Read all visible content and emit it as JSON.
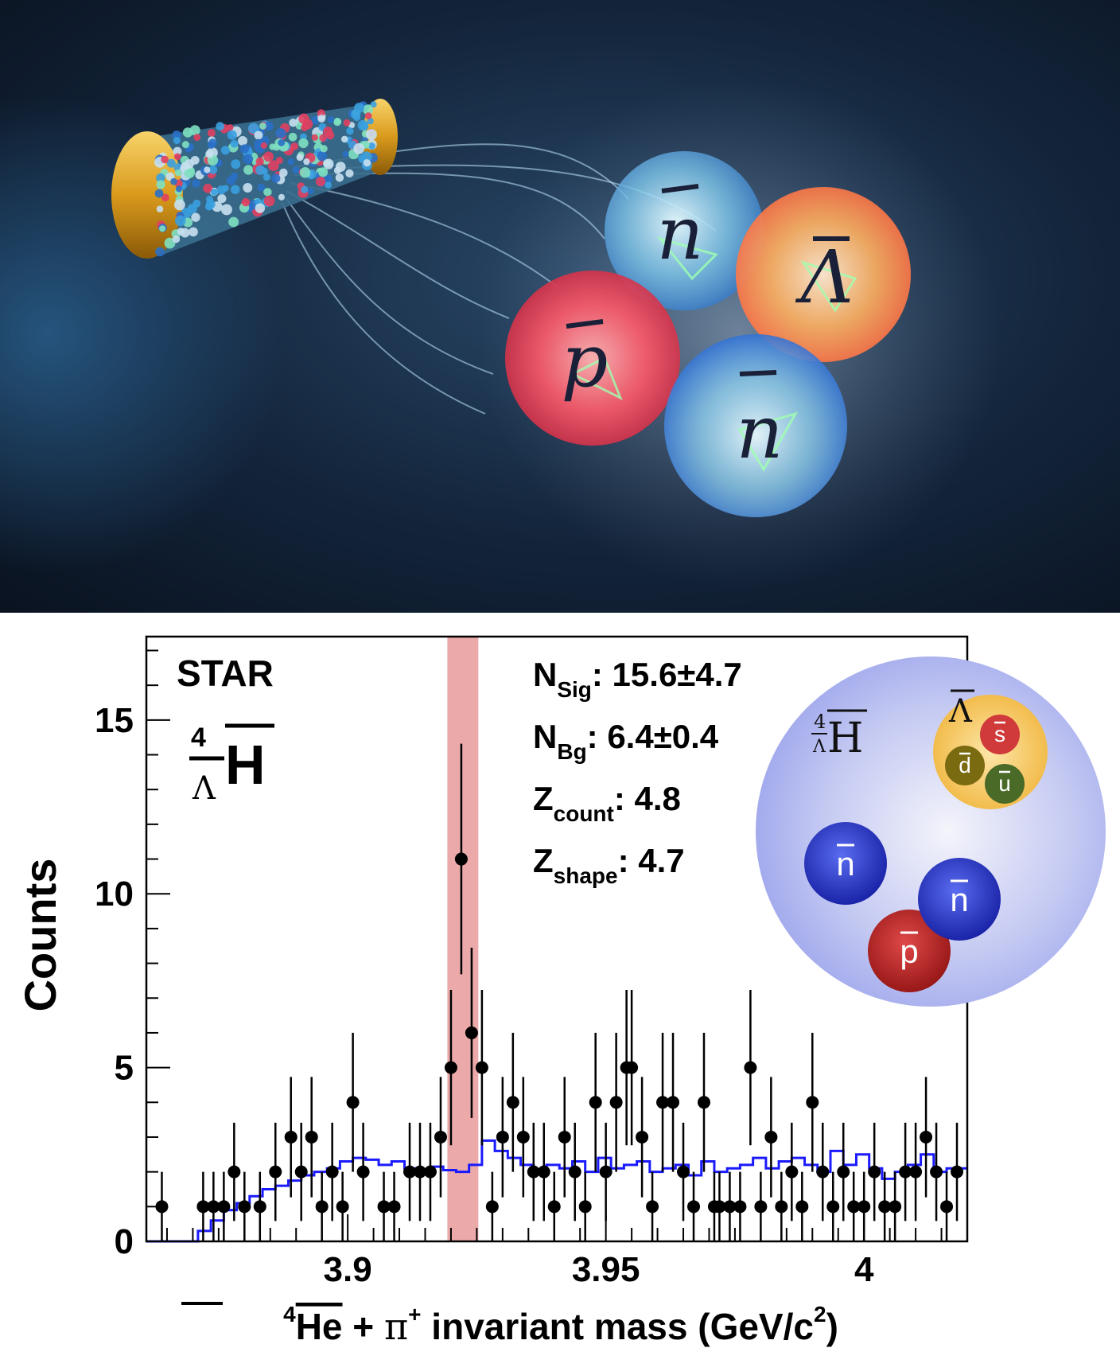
{
  "illustration": {
    "particle_labels": [
      "n",
      "Λ",
      "p",
      "n"
    ]
  },
  "colors": {
    "bg_dark": "#0b1726",
    "data_points": "#000000",
    "background_hist": "#1a1aff",
    "signal_band": "#e89a9a",
    "nucleus": "#aab3ef",
    "antilambda": "#f3c35a",
    "antineutron": "#2233cc",
    "antiproton": "#c02222"
  },
  "chart_data": {
    "type": "scatter",
    "experiment_label": "STAR",
    "particle_label": {
      "mass_number": "4",
      "subscript": "Λ",
      "symbol": "H"
    },
    "ylabel": "Counts",
    "xlabel_parts": {
      "mass_number": "4",
      "nucleus": "He",
      "plus": " + ",
      "pion": "π",
      "pion_charge": "+",
      "rest": " invariant mass (GeV/c",
      "exp": "2",
      "close": ")"
    },
    "xlim": [
      3.861,
      4.02
    ],
    "ylim": [
      0,
      17.4
    ],
    "xticks": [
      3.9,
      3.95,
      4.0
    ],
    "xtick_labels": [
      "3.9",
      "3.95",
      "4"
    ],
    "yticks": [
      0,
      5,
      10,
      15
    ],
    "ytick_labels": [
      "0",
      "5",
      "10",
      "15"
    ],
    "signal_window": [
      3.9193,
      3.9253
    ],
    "stats": [
      {
        "main": "N",
        "sub": "Sig",
        "value": ": 15.6±4.7"
      },
      {
        "main": "N",
        "sub": "Bg",
        "value": ": 6.4±0.4"
      },
      {
        "main": "Z",
        "sub": "count",
        "value": ": 4.8"
      },
      {
        "main": "Z",
        "sub": "shape",
        "value": ": 4.7"
      }
    ],
    "series": [
      {
        "kind": "data",
        "x": [
          3.864,
          3.872,
          3.874,
          3.876,
          3.878,
          3.88,
          3.883,
          3.886,
          3.889,
          3.891,
          3.893,
          3.895,
          3.897,
          3.899,
          3.901,
          3.903,
          3.907,
          3.909,
          3.912,
          3.914,
          3.916,
          3.918,
          3.92,
          3.922,
          3.924,
          3.926,
          3.928,
          3.93,
          3.932,
          3.934,
          3.936,
          3.938,
          3.94,
          3.942,
          3.944,
          3.946,
          3.948,
          3.95,
          3.952,
          3.954,
          3.955,
          3.957,
          3.959,
          3.961,
          3.963,
          3.965,
          3.967,
          3.969,
          3.971,
          3.972,
          3.974,
          3.976,
          3.978,
          3.98,
          3.982,
          3.984,
          3.986,
          3.988,
          3.99,
          3.992,
          3.994,
          3.996,
          3.998,
          4.0,
          4.002,
          4.004,
          4.006,
          4.008,
          4.01,
          4.012,
          4.014,
          4.016,
          4.018
        ],
        "y": [
          1,
          1,
          1,
          1,
          2,
          1,
          1,
          2,
          3,
          2,
          3,
          1,
          2,
          1,
          4,
          2,
          1,
          1,
          2,
          2,
          2,
          3,
          5,
          11,
          6,
          5,
          1,
          3,
          4,
          3,
          2,
          2,
          1,
          3,
          2,
          1,
          4,
          2,
          4,
          5,
          5,
          3,
          1,
          4,
          4,
          2,
          1,
          4,
          1,
          1,
          1,
          1,
          5,
          1,
          3,
          1,
          2,
          1,
          4,
          2,
          1,
          2,
          1,
          1,
          2,
          1,
          1,
          2,
          2,
          3,
          2,
          1,
          2
        ]
      },
      {
        "kind": "background",
        "x": [
          3.861,
          3.8635,
          3.866,
          3.8685,
          3.871,
          3.8735,
          3.876,
          3.8785,
          3.881,
          3.8835,
          3.886,
          3.8885,
          3.891,
          3.8935,
          3.896,
          3.8985,
          3.901,
          3.9035,
          3.906,
          3.9085,
          3.911,
          3.9135,
          3.916,
          3.9185,
          3.921,
          3.9235,
          3.926,
          3.9285,
          3.931,
          3.9335,
          3.936,
          3.9385,
          3.941,
          3.9435,
          3.946,
          3.9485,
          3.951,
          3.9535,
          3.956,
          3.9585,
          3.961,
          3.9635,
          3.966,
          3.9685,
          3.971,
          3.9735,
          3.976,
          3.9785,
          3.981,
          3.9835,
          3.986,
          3.9885,
          3.991,
          3.9935,
          3.996,
          3.9985,
          4.001,
          4.0035,
          4.006,
          4.0085,
          4.011,
          4.0135,
          4.016,
          4.0185
        ],
        "y": [
          0,
          0,
          0,
          0,
          0.3,
          0.6,
          0.9,
          1.1,
          1.3,
          1.5,
          1.6,
          1.75,
          1.9,
          2.0,
          2.1,
          2.3,
          2.4,
          2.35,
          2.2,
          2.3,
          2.1,
          2.0,
          2.15,
          2.05,
          2.0,
          2.2,
          2.9,
          2.6,
          2.4,
          2.2,
          2.0,
          2.2,
          2.1,
          2.3,
          2.0,
          2.4,
          2.1,
          2.2,
          2.3,
          2.0,
          2.1,
          2.2,
          1.9,
          2.3,
          2.0,
          2.1,
          2.2,
          2.4,
          2.1,
          2.3,
          2.4,
          2.2,
          2.0,
          2.6,
          2.2,
          2.5,
          2.1,
          1.8,
          2.0,
          2.2,
          2.5,
          2.0,
          2.1,
          2.1
        ]
      }
    ],
    "inset": {
      "nucleus_label": {
        "mass_number": "4",
        "subscript": "Λ",
        "symbol": "H"
      },
      "lambda_label": "Λ",
      "quarks": [
        "s",
        "d",
        "u"
      ],
      "nucleons": [
        "n",
        "n",
        "p"
      ]
    }
  }
}
